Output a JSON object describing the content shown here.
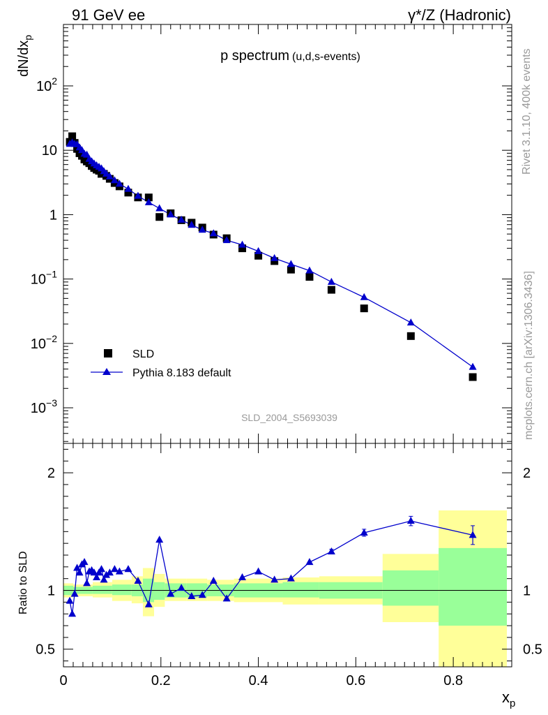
{
  "header": {
    "left": "91 GeV ee",
    "right": "γ*/Z (Hadronic)"
  },
  "side_labels": {
    "rivet": "Rivet 3.1.10,  400k events",
    "mcplots": "mcplots.cern.ch [arXiv:1306.3436]"
  },
  "chart_data": [
    {
      "type": "scatter",
      "panel": "main",
      "title": "p spectrum",
      "subtitle": "(u,d,s-events)",
      "watermark": "SLD_2004_S5693039",
      "ylabel": "dN/dx",
      "ylabel_sub": "p",
      "yscale": "log",
      "xlim": [
        0,
        0.92
      ],
      "ylim": [
        0.00028,
        900
      ],
      "y_ticks": [
        {
          "value": 0.001,
          "base": "10",
          "exp": "−3"
        },
        {
          "value": 0.01,
          "base": "10",
          "exp": "−2"
        },
        {
          "value": 0.1,
          "base": "10",
          "exp": "−1"
        },
        {
          "value": 1,
          "label": "1"
        },
        {
          "value": 10,
          "label": "10"
        },
        {
          "value": 100,
          "base": "10",
          "exp": "2"
        }
      ],
      "legend_position": "bottom-left",
      "series": [
        {
          "name": "SLD",
          "style": "square",
          "color": "#000000",
          "x": [
            0.013,
            0.018,
            0.023,
            0.028,
            0.033,
            0.038,
            0.043,
            0.048,
            0.053,
            0.058,
            0.063,
            0.068,
            0.073,
            0.078,
            0.083,
            0.088,
            0.095,
            0.105,
            0.115,
            0.133,
            0.153,
            0.175,
            0.197,
            0.22,
            0.242,
            0.263,
            0.285,
            0.308,
            0.335,
            0.367,
            0.4,
            0.433,
            0.467,
            0.505,
            0.55,
            0.617,
            0.713,
            0.84
          ],
          "y": [
            13.5,
            16.5,
            13.0,
            10.5,
            9.0,
            8.2,
            7.2,
            6.7,
            6.3,
            5.7,
            5.3,
            5.0,
            4.8,
            4.3,
            4.3,
            4.0,
            3.6,
            3.1,
            2.75,
            2.2,
            1.85,
            1.85,
            0.92,
            1.05,
            0.82,
            0.75,
            0.63,
            0.49,
            0.43,
            0.3,
            0.23,
            0.19,
            0.14,
            0.108,
            0.068,
            0.035,
            0.013,
            0.003
          ]
        },
        {
          "name": "Pythia 8.183 default",
          "style": "triangle-line",
          "color": "#0000cc",
          "x": [
            0.013,
            0.018,
            0.023,
            0.028,
            0.033,
            0.038,
            0.043,
            0.048,
            0.053,
            0.058,
            0.063,
            0.068,
            0.073,
            0.078,
            0.083,
            0.088,
            0.095,
            0.105,
            0.115,
            0.133,
            0.153,
            0.175,
            0.197,
            0.22,
            0.242,
            0.263,
            0.285,
            0.308,
            0.335,
            0.367,
            0.4,
            0.433,
            0.467,
            0.505,
            0.55,
            0.617,
            0.713,
            0.84
          ],
          "y": [
            12.5,
            13.2,
            12.5,
            12.3,
            11.0,
            10.0,
            8.8,
            8.5,
            7.3,
            6.7,
            6.2,
            5.8,
            5.5,
            5.2,
            4.7,
            4.3,
            3.9,
            3.4,
            3.0,
            2.5,
            1.95,
            1.55,
            1.25,
            1.0,
            0.83,
            0.69,
            0.58,
            0.51,
            0.4,
            0.34,
            0.27,
            0.21,
            0.17,
            0.135,
            0.09,
            0.052,
            0.021,
            0.0043
          ]
        }
      ]
    },
    {
      "type": "line",
      "panel": "ratio",
      "ylabel": "Ratio to SLD",
      "xlabel": "x",
      "xlabel_sub": "p",
      "xlim": [
        0,
        0.92
      ],
      "ylim": [
        0.35,
        2.25
      ],
      "y_ticks": [
        "0.5",
        "1",
        "2"
      ],
      "x_ticks": [
        "0",
        "0.2",
        "0.4",
        "0.6",
        "0.8"
      ],
      "reference_line": 1,
      "bands": [
        {
          "xlo": 0.0,
          "xhi": 0.02,
          "ylo": 0.96,
          "yhi": 1.04,
          "ylo2": 0.94,
          "yhi2": 1.06
        },
        {
          "xlo": 0.02,
          "xhi": 0.06,
          "ylo": 0.97,
          "yhi": 1.03,
          "ylo2": 0.95,
          "yhi2": 1.05
        },
        {
          "xlo": 0.06,
          "xhi": 0.1,
          "ylo": 0.97,
          "yhi": 1.04,
          "ylo2": 0.94,
          "yhi2": 1.07
        },
        {
          "xlo": 0.1,
          "xhi": 0.14,
          "ylo": 0.96,
          "yhi": 1.05,
          "ylo2": 0.91,
          "yhi2": 1.09
        },
        {
          "xlo": 0.14,
          "xhi": 0.163,
          "ylo": 0.95,
          "yhi": 1.05,
          "ylo2": 0.89,
          "yhi2": 1.12
        },
        {
          "xlo": 0.163,
          "xhi": 0.186,
          "ylo": 0.9,
          "yhi": 1.1,
          "ylo2": 0.78,
          "yhi2": 1.19
        },
        {
          "xlo": 0.186,
          "xhi": 0.208,
          "ylo": 0.92,
          "yhi": 1.07,
          "ylo2": 0.86,
          "yhi2": 1.14
        },
        {
          "xlo": 0.208,
          "xhi": 0.253,
          "ylo": 0.94,
          "yhi": 1.06,
          "ylo2": 0.91,
          "yhi2": 1.1
        },
        {
          "xlo": 0.253,
          "xhi": 0.295,
          "ylo": 0.94,
          "yhi": 1.06,
          "ylo2": 0.91,
          "yhi2": 1.1
        },
        {
          "xlo": 0.295,
          "xhi": 0.35,
          "ylo": 0.95,
          "yhi": 1.05,
          "ylo2": 0.91,
          "yhi2": 1.09
        },
        {
          "xlo": 0.35,
          "xhi": 0.45,
          "ylo": 0.94,
          "yhi": 1.06,
          "ylo2": 0.9,
          "yhi2": 1.1
        },
        {
          "xlo": 0.45,
          "xhi": 0.525,
          "ylo": 0.94,
          "yhi": 1.07,
          "ylo2": 0.88,
          "yhi2": 1.11
        },
        {
          "xlo": 0.525,
          "xhi": 0.655,
          "ylo": 0.93,
          "yhi": 1.07,
          "ylo2": 0.88,
          "yhi2": 1.12
        },
        {
          "xlo": 0.655,
          "xhi": 0.77,
          "ylo": 0.87,
          "yhi": 1.17,
          "ylo2": 0.73,
          "yhi2": 1.31
        },
        {
          "xlo": 0.77,
          "xhi": 0.91,
          "ylo": 0.7,
          "yhi": 1.36,
          "ylo2": 0.35,
          "yhi2": 1.68
        }
      ],
      "series": [
        {
          "name": "Pythia 8.183 default / SLD",
          "style": "triangle-line",
          "color": "#0000cc",
          "x": [
            0.013,
            0.018,
            0.023,
            0.028,
            0.033,
            0.038,
            0.043,
            0.048,
            0.053,
            0.058,
            0.063,
            0.068,
            0.073,
            0.078,
            0.083,
            0.088,
            0.095,
            0.105,
            0.115,
            0.133,
            0.153,
            0.175,
            0.197,
            0.22,
            0.242,
            0.263,
            0.285,
            0.308,
            0.335,
            0.367,
            0.4,
            0.433,
            0.467,
            0.505,
            0.55,
            0.617,
            0.713,
            0.84
          ],
          "y": [
            0.91,
            0.8,
            0.97,
            1.19,
            1.15,
            1.22,
            1.24,
            1.06,
            1.16,
            1.17,
            1.15,
            1.11,
            1.15,
            1.18,
            1.09,
            1.13,
            1.15,
            1.18,
            1.16,
            1.18,
            1.08,
            0.88,
            1.43,
            0.97,
            1.02,
            0.95,
            0.96,
            1.08,
            0.93,
            1.11,
            1.16,
            1.09,
            1.1,
            1.24,
            1.33,
            1.49,
            1.59,
            1.47
          ],
          "err": [
            0,
            0,
            0,
            0,
            0,
            0,
            0,
            0,
            0,
            0,
            0,
            0,
            0,
            0,
            0,
            0,
            0,
            0,
            0,
            0,
            0,
            0,
            0,
            0,
            0,
            0,
            0,
            0,
            0,
            0,
            0,
            0,
            0,
            0,
            0.02,
            0.03,
            0.04,
            0.08
          ]
        }
      ]
    }
  ]
}
